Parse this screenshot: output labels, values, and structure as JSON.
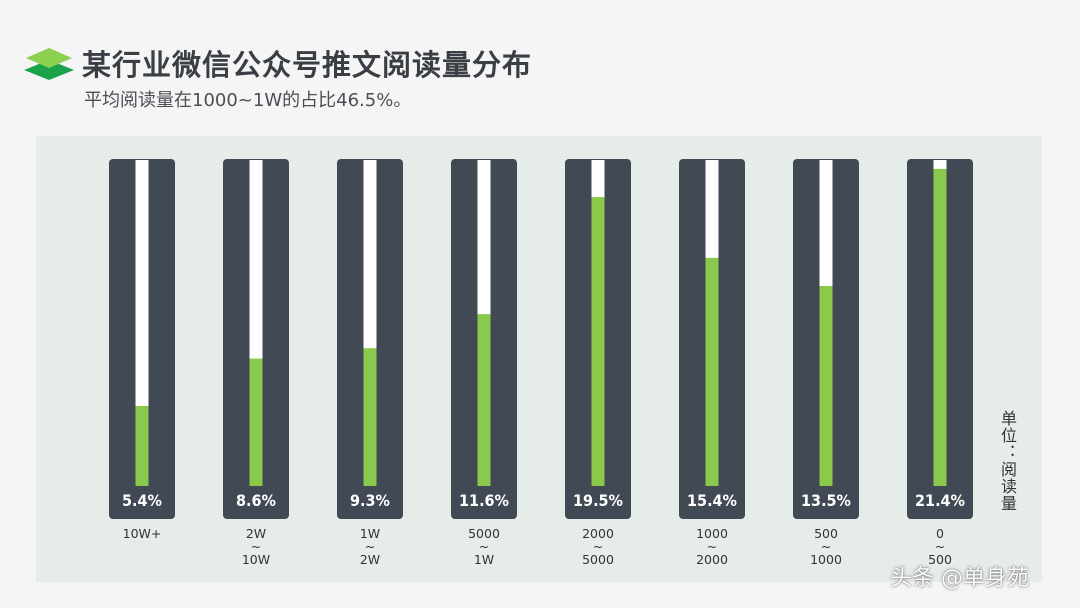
{
  "header": {
    "title": "某行业微信公众号推文阅读量分布",
    "subtitle": "平均阅读量在1000~1W的占比46.5%。"
  },
  "unit_label": "单位：阅读量",
  "watermark": "头条 @单身苑",
  "colors": {
    "bar_frame": "#414a54",
    "bar_track": "#ffffff",
    "bar_fill": "#8bc94d",
    "panel": "#e6ece7",
    "logo_top": "#8bd04e",
    "logo_bottom": "#1aa24a"
  },
  "chart_data": {
    "type": "bar",
    "categories": [
      "10W+",
      "2W\n~\n10W",
      "1W\n~\n2W",
      "5000\n~\n1W",
      "2000\n~\n5000",
      "1000\n~\n2000",
      "500\n~\n1000",
      "0\n~\n500"
    ],
    "values": [
      5.4,
      8.6,
      9.3,
      11.6,
      19.5,
      15.4,
      13.5,
      21.4
    ],
    "value_labels": [
      "5.4%",
      "8.6%",
      "9.3%",
      "11.6%",
      "19.5%",
      "15.4%",
      "13.5%",
      "21.4%"
    ],
    "ylim": [
      0,
      22
    ],
    "unit": "%"
  }
}
